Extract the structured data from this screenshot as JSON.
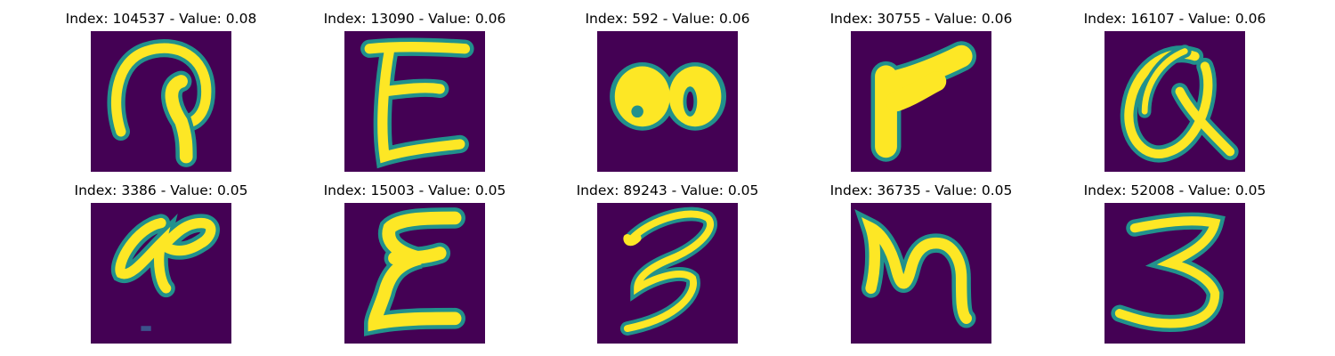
{
  "colors": {
    "background_dark": "#440154",
    "mid_teal": "#21918c",
    "bright_yellow": "#fde725"
  },
  "colormap": "viridis",
  "panels": [
    {
      "title": "Index: 104537 - Value: 0.08",
      "glyph": "ornate-p-like-character"
    },
    {
      "title": "Index: 13090 - Value: 0.06",
      "glyph": "E"
    },
    {
      "title": "Index: 592 - Value: 0.06",
      "glyph": "bold-blob-like-character"
    },
    {
      "title": "Index: 30755 - Value: 0.06",
      "glyph": "r"
    },
    {
      "title": "Index: 16107 - Value: 0.06",
      "glyph": "looped-a-like-character"
    },
    {
      "title": "Index: 3386 - Value: 0.05",
      "glyph": "a"
    },
    {
      "title": "Index: 15003 - Value: 0.05",
      "glyph": "E"
    },
    {
      "title": "Index: 89243 - Value: 0.05",
      "glyph": "3"
    },
    {
      "title": "Index: 36735 - Value: 0.05",
      "glyph": "m"
    },
    {
      "title": "Index: 52008 - Value: 0.05",
      "glyph": "3"
    }
  ]
}
